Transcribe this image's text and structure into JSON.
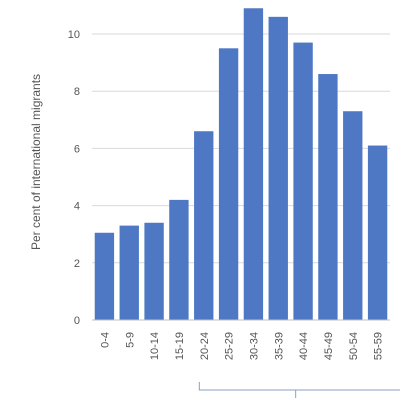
{
  "chart_data": {
    "type": "bar",
    "title": "",
    "xlabel": "",
    "ylabel": "Per cent of international migrants",
    "categories": [
      "0-4",
      "5-9",
      "10-14",
      "15-19",
      "20-24",
      "25-29",
      "30-34",
      "35-39",
      "40-44",
      "45-49",
      "50-54",
      "55-59"
    ],
    "values": [
      3.05,
      3.3,
      3.4,
      4.2,
      6.6,
      9.5,
      10.9,
      10.6,
      9.7,
      8.6,
      7.3,
      6.1
    ],
    "ylim": [
      0,
      11
    ],
    "yticks": [
      "0",
      "2",
      "4",
      "6",
      "8",
      "10"
    ],
    "grid": true,
    "bar_color": "#4f78c4",
    "legend": "none"
  }
}
